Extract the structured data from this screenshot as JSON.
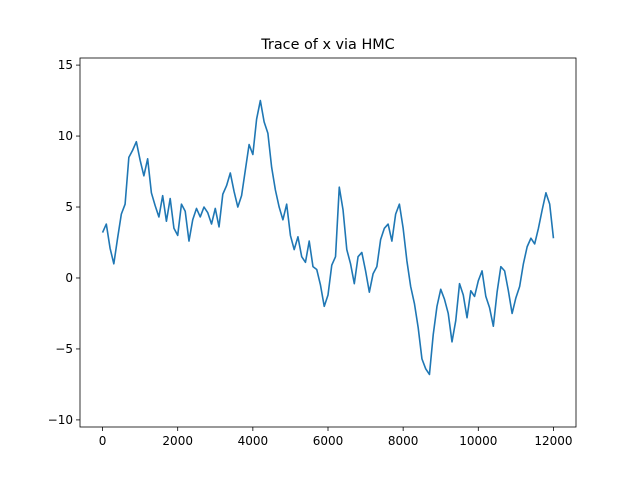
{
  "chart_data": {
    "type": "line",
    "title": "Trace of x via HMC",
    "xlabel": "",
    "ylabel": "",
    "xlim": [
      -600,
      12600
    ],
    "ylim": [
      -10.5,
      15.5
    ],
    "xticks": [
      0,
      2000,
      4000,
      6000,
      8000,
      10000,
      12000
    ],
    "yticks": [
      -10,
      -5,
      0,
      5,
      10,
      15
    ],
    "grid": false,
    "legend": "none",
    "series": [
      {
        "color": "#1f77b4",
        "x": [
          0,
          100,
          200,
          300,
          400,
          500,
          600,
          700,
          800,
          900,
          1000,
          1100,
          1200,
          1300,
          1400,
          1500,
          1600,
          1700,
          1800,
          1900,
          2000,
          2100,
          2200,
          2300,
          2400,
          2500,
          2600,
          2700,
          2800,
          2900,
          3000,
          3100,
          3200,
          3300,
          3400,
          3500,
          3600,
          3700,
          3800,
          3900,
          4000,
          4100,
          4200,
          4300,
          4400,
          4500,
          4600,
          4700,
          4800,
          4900,
          5000,
          5100,
          5200,
          5300,
          5400,
          5500,
          5600,
          5700,
          5800,
          5900,
          6000,
          6100,
          6200,
          6300,
          6400,
          6500,
          6600,
          6700,
          6800,
          6900,
          7000,
          7100,
          7200,
          7300,
          7400,
          7500,
          7600,
          7700,
          7800,
          7900,
          8000,
          8100,
          8200,
          8300,
          8400,
          8500,
          8600,
          8700,
          8800,
          8900,
          9000,
          9100,
          9200,
          9300,
          9400,
          9500,
          9600,
          9700,
          9800,
          9900,
          10000,
          10100,
          10200,
          10300,
          10400,
          10500,
          10600,
          10700,
          10800,
          10900,
          11000,
          11100,
          11200,
          11300,
          11400,
          11500,
          11600,
          11700,
          11800,
          11900,
          12000
        ],
        "y": [
          3.2,
          3.8,
          2.1,
          1.0,
          2.8,
          4.5,
          5.2,
          8.5,
          9.0,
          9.6,
          8.3,
          7.2,
          8.4,
          6.0,
          5.1,
          4.3,
          5.8,
          4.0,
          5.6,
          3.5,
          3.0,
          5.2,
          4.7,
          2.6,
          4.1,
          4.9,
          4.3,
          5.0,
          4.6,
          3.8,
          4.9,
          3.6,
          5.9,
          6.5,
          7.4,
          6.1,
          5.0,
          5.8,
          7.6,
          9.4,
          8.7,
          11.2,
          12.5,
          11.0,
          10.2,
          7.8,
          6.2,
          5.0,
          4.1,
          5.2,
          3.0,
          2.0,
          2.9,
          1.5,
          1.1,
          2.6,
          0.8,
          0.6,
          -0.5,
          -2.0,
          -1.2,
          0.9,
          1.5,
          6.4,
          4.8,
          2.0,
          1.0,
          -0.4,
          1.5,
          1.8,
          0.5,
          -1.0,
          0.3,
          0.8,
          2.7,
          3.5,
          3.8,
          2.6,
          4.5,
          5.2,
          3.5,
          1.2,
          -0.6,
          -1.8,
          -3.5,
          -5.7,
          -6.4,
          -6.8,
          -4.0,
          -2.0,
          -0.8,
          -1.5,
          -2.5,
          -4.5,
          -3.0,
          -0.4,
          -1.2,
          -2.8,
          -0.9,
          -1.3,
          -0.2,
          0.5,
          -1.3,
          -2.1,
          -3.4,
          -1.0,
          0.8,
          0.5,
          -0.9,
          -2.5,
          -1.4,
          -0.6,
          1.0,
          2.2,
          2.8,
          2.4,
          3.5,
          4.8,
          6.0,
          5.2,
          2.8
        ]
      }
    ]
  }
}
